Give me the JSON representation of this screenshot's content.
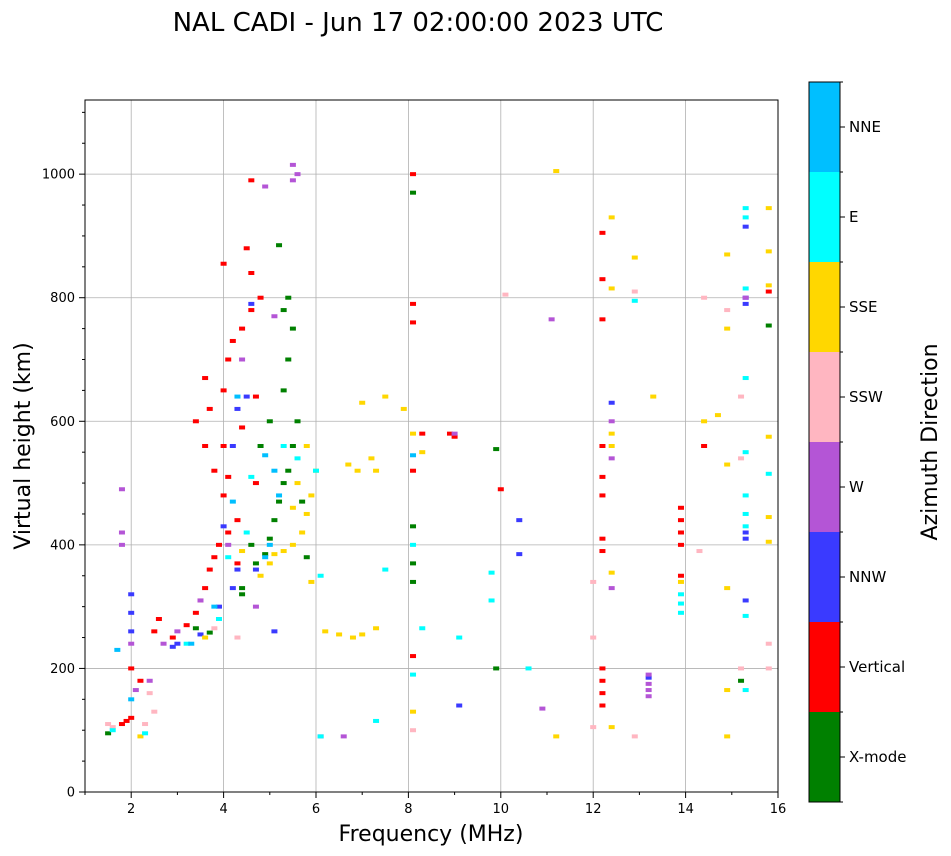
{
  "chart_data": {
    "type": "scatter",
    "title": "NAL CADI - Jun 17 02:00:00 2023 UTC",
    "xlabel": "Frequency (MHz)",
    "ylabel": "Virtual height (km)",
    "xlim": [
      1.0,
      16.0
    ],
    "ylim": [
      0,
      1120
    ],
    "xticks": [
      2,
      4,
      6,
      8,
      10,
      12,
      14,
      16
    ],
    "yticks": [
      0,
      200,
      400,
      600,
      800,
      1000
    ],
    "grid": true,
    "colorbar": {
      "label": "Azimuth Direction",
      "categories": [
        {
          "name": "X-mode",
          "color": "#008000"
        },
        {
          "name": "Vertical",
          "color": "#ff0000"
        },
        {
          "name": "NNW",
          "color": "#3a3aff"
        },
        {
          "name": "W",
          "color": "#b455d6"
        },
        {
          "name": "SSW",
          "color": "#ffb6c1"
        },
        {
          "name": "SSE",
          "color": "#ffd700"
        },
        {
          "name": "E",
          "color": "#00ffff"
        },
        {
          "name": "NNE",
          "color": "#00bfff"
        }
      ]
    },
    "series": [
      {
        "name": "X-mode",
        "color": "#008000",
        "points": [
          [
            1.5,
            95
          ],
          [
            3.4,
            265
          ],
          [
            3.7,
            258
          ],
          [
            4.4,
            320
          ],
          [
            4.7,
            370
          ],
          [
            4.9,
            385
          ],
          [
            5.0,
            410
          ],
          [
            5.1,
            440
          ],
          [
            5.2,
            470
          ],
          [
            5.3,
            500
          ],
          [
            5.4,
            520
          ],
          [
            5.5,
            560
          ],
          [
            5.6,
            600
          ],
          [
            5.3,
            650
          ],
          [
            5.4,
            700
          ],
          [
            5.5,
            750
          ],
          [
            5.3,
            780
          ],
          [
            5.4,
            800
          ],
          [
            5.2,
            885
          ],
          [
            4.4,
            330
          ],
          [
            4.6,
            400
          ],
          [
            5.7,
            470
          ],
          [
            5.8,
            380
          ],
          [
            4.8,
            560
          ],
          [
            5.0,
            600
          ],
          [
            8.1,
            970
          ],
          [
            8.1,
            430
          ],
          [
            8.1,
            370
          ],
          [
            8.1,
            340
          ],
          [
            9.9,
            555
          ],
          [
            9.9,
            200
          ],
          [
            15.8,
            755
          ],
          [
            15.2,
            180
          ]
        ]
      },
      {
        "name": "Vertical",
        "color": "#ff0000",
        "points": [
          [
            1.8,
            110
          ],
          [
            1.9,
            115
          ],
          [
            2.0,
            120
          ],
          [
            2.0,
            200
          ],
          [
            2.2,
            180
          ],
          [
            2.5,
            260
          ],
          [
            2.6,
            280
          ],
          [
            2.9,
            250
          ],
          [
            3.2,
            270
          ],
          [
            3.4,
            290
          ],
          [
            3.5,
            310
          ],
          [
            3.6,
            330
          ],
          [
            3.7,
            360
          ],
          [
            3.8,
            380
          ],
          [
            3.9,
            400
          ],
          [
            4.1,
            420
          ],
          [
            4.3,
            440
          ],
          [
            4.0,
            480
          ],
          [
            4.1,
            510
          ],
          [
            3.8,
            520
          ],
          [
            3.6,
            560
          ],
          [
            3.4,
            600
          ],
          [
            3.7,
            620
          ],
          [
            3.6,
            670
          ],
          [
            4.0,
            650
          ],
          [
            4.1,
            700
          ],
          [
            4.2,
            730
          ],
          [
            4.4,
            750
          ],
          [
            4.6,
            780
          ],
          [
            4.8,
            800
          ],
          [
            4.6,
            840
          ],
          [
            4.0,
            855
          ],
          [
            4.5,
            880
          ],
          [
            4.6,
            990
          ],
          [
            4.4,
            590
          ],
          [
            4.7,
            640
          ],
          [
            4.0,
            560
          ],
          [
            4.3,
            370
          ],
          [
            4.7,
            500
          ],
          [
            8.1,
            520
          ],
          [
            8.1,
            220
          ],
          [
            8.1,
            760
          ],
          [
            8.1,
            790
          ],
          [
            8.1,
            1000
          ],
          [
            8.3,
            580
          ],
          [
            8.9,
            580
          ],
          [
            9.0,
            575
          ],
          [
            10.0,
            490
          ],
          [
            12.2,
            905
          ],
          [
            12.2,
            830
          ],
          [
            12.2,
            765
          ],
          [
            12.2,
            560
          ],
          [
            12.2,
            510
          ],
          [
            12.2,
            480
          ],
          [
            12.2,
            410
          ],
          [
            12.2,
            390
          ],
          [
            12.2,
            200
          ],
          [
            12.2,
            180
          ],
          [
            12.2,
            160
          ],
          [
            12.2,
            140
          ],
          [
            13.9,
            460
          ],
          [
            13.9,
            440
          ],
          [
            13.9,
            420
          ],
          [
            13.9,
            400
          ],
          [
            13.9,
            350
          ],
          [
            14.4,
            560
          ],
          [
            15.8,
            810
          ]
        ]
      },
      {
        "name": "NNW",
        "color": "#3a3aff",
        "points": [
          [
            2.0,
            320
          ],
          [
            2.0,
            290
          ],
          [
            2.0,
            260
          ],
          [
            2.9,
            235
          ],
          [
            3.0,
            240
          ],
          [
            3.5,
            255
          ],
          [
            3.9,
            300
          ],
          [
            4.2,
            330
          ],
          [
            4.3,
            360
          ],
          [
            4.0,
            430
          ],
          [
            4.2,
            560
          ],
          [
            4.3,
            620
          ],
          [
            4.5,
            640
          ],
          [
            4.6,
            790
          ],
          [
            4.7,
            360
          ],
          [
            5.1,
            260
          ],
          [
            9.1,
            140
          ],
          [
            10.4,
            440
          ],
          [
            10.4,
            385
          ],
          [
            12.4,
            630
          ],
          [
            13.2,
            185
          ],
          [
            15.3,
            420
          ],
          [
            15.3,
            410
          ],
          [
            15.3,
            310
          ],
          [
            15.3,
            800
          ],
          [
            15.3,
            790
          ],
          [
            15.3,
            915
          ]
        ]
      },
      {
        "name": "W",
        "color": "#b455d6",
        "points": [
          [
            1.8,
            420
          ],
          [
            1.8,
            400
          ],
          [
            1.8,
            490
          ],
          [
            2.0,
            240
          ],
          [
            2.1,
            165
          ],
          [
            2.4,
            180
          ],
          [
            2.7,
            240
          ],
          [
            3.0,
            260
          ],
          [
            3.5,
            310
          ],
          [
            4.1,
            400
          ],
          [
            4.4,
            700
          ],
          [
            4.7,
            300
          ],
          [
            4.9,
            980
          ],
          [
            5.1,
            770
          ],
          [
            5.5,
            1015
          ],
          [
            5.6,
            1000
          ],
          [
            5.5,
            990
          ],
          [
            6.1,
            90
          ],
          [
            6.6,
            90
          ],
          [
            9.0,
            580
          ],
          [
            10.9,
            135
          ],
          [
            11.1,
            765
          ],
          [
            12.4,
            540
          ],
          [
            12.4,
            330
          ],
          [
            12.4,
            600
          ],
          [
            13.2,
            190
          ],
          [
            13.2,
            175
          ],
          [
            13.2,
            165
          ],
          [
            13.2,
            155
          ],
          [
            15.3,
            800
          ]
        ]
      },
      {
        "name": "SSW",
        "color": "#ffb6c1",
        "points": [
          [
            1.5,
            110
          ],
          [
            1.6,
            105
          ],
          [
            2.3,
            110
          ],
          [
            2.5,
            130
          ],
          [
            2.4,
            160
          ],
          [
            3.8,
            265
          ],
          [
            4.3,
            250
          ],
          [
            8.1,
            100
          ],
          [
            10.1,
            805
          ],
          [
            12.0,
            340
          ],
          [
            12.0,
            250
          ],
          [
            12.0,
            105
          ],
          [
            12.9,
            810
          ],
          [
            12.9,
            90
          ],
          [
            14.4,
            800
          ],
          [
            14.9,
            780
          ],
          [
            15.2,
            640
          ],
          [
            15.2,
            540
          ],
          [
            15.2,
            200
          ],
          [
            15.8,
            240
          ],
          [
            15.8,
            200
          ],
          [
            14.3,
            390
          ]
        ]
      },
      {
        "name": "SSE",
        "color": "#ffd700",
        "points": [
          [
            2.2,
            90
          ],
          [
            3.6,
            250
          ],
          [
            4.4,
            390
          ],
          [
            4.8,
            350
          ],
          [
            5.0,
            370
          ],
          [
            5.1,
            385
          ],
          [
            5.3,
            390
          ],
          [
            5.5,
            400
          ],
          [
            5.7,
            420
          ],
          [
            5.8,
            450
          ],
          [
            5.9,
            480
          ],
          [
            6.0,
            520
          ],
          [
            5.8,
            560
          ],
          [
            5.5,
            460
          ],
          [
            5.6,
            500
          ],
          [
            5.9,
            340
          ],
          [
            6.2,
            260
          ],
          [
            6.5,
            255
          ],
          [
            6.8,
            250
          ],
          [
            7.0,
            255
          ],
          [
            7.3,
            265
          ],
          [
            6.7,
            530
          ],
          [
            6.9,
            520
          ],
          [
            7.2,
            540
          ],
          [
            7.3,
            520
          ],
          [
            7.0,
            630
          ],
          [
            7.5,
            640
          ],
          [
            7.9,
            620
          ],
          [
            8.1,
            580
          ],
          [
            8.1,
            130
          ],
          [
            8.3,
            550
          ],
          [
            11.2,
            1005
          ],
          [
            11.2,
            90
          ],
          [
            12.4,
            930
          ],
          [
            12.4,
            815
          ],
          [
            12.4,
            580
          ],
          [
            12.4,
            560
          ],
          [
            12.4,
            355
          ],
          [
            12.4,
            105
          ],
          [
            12.9,
            865
          ],
          [
            13.3,
            640
          ],
          [
            13.9,
            340
          ],
          [
            14.7,
            610
          ],
          [
            14.4,
            600
          ],
          [
            14.9,
            870
          ],
          [
            14.9,
            750
          ],
          [
            14.9,
            530
          ],
          [
            14.9,
            330
          ],
          [
            14.9,
            165
          ],
          [
            14.9,
            90
          ],
          [
            15.8,
            945
          ],
          [
            15.8,
            875
          ],
          [
            15.8,
            820
          ],
          [
            15.8,
            575
          ],
          [
            15.8,
            445
          ],
          [
            15.8,
            405
          ]
        ]
      },
      {
        "name": "E",
        "color": "#00ffff",
        "points": [
          [
            1.6,
            100
          ],
          [
            2.3,
            95
          ],
          [
            3.2,
            240
          ],
          [
            3.9,
            280
          ],
          [
            4.1,
            380
          ],
          [
            4.5,
            420
          ],
          [
            4.6,
            510
          ],
          [
            5.3,
            560
          ],
          [
            5.6,
            540
          ],
          [
            6.0,
            520
          ],
          [
            6.1,
            350
          ],
          [
            6.1,
            90
          ],
          [
            7.3,
            115
          ],
          [
            7.5,
            360
          ],
          [
            8.1,
            190
          ],
          [
            8.1,
            400
          ],
          [
            8.3,
            265
          ],
          [
            9.1,
            250
          ],
          [
            9.8,
            355
          ],
          [
            9.8,
            310
          ],
          [
            10.6,
            200
          ],
          [
            12.9,
            795
          ],
          [
            13.9,
            320
          ],
          [
            13.9,
            305
          ],
          [
            13.9,
            290
          ],
          [
            15.3,
            945
          ],
          [
            15.3,
            930
          ],
          [
            15.3,
            815
          ],
          [
            15.3,
            670
          ],
          [
            15.3,
            550
          ],
          [
            15.3,
            480
          ],
          [
            15.3,
            450
          ],
          [
            15.3,
            430
          ],
          [
            15.3,
            285
          ],
          [
            15.3,
            165
          ],
          [
            15.8,
            515
          ]
        ]
      },
      {
        "name": "NNE",
        "color": "#00bfff",
        "points": [
          [
            1.7,
            230
          ],
          [
            2.0,
            150
          ],
          [
            3.3,
            240
          ],
          [
            3.8,
            300
          ],
          [
            4.2,
            470
          ],
          [
            4.3,
            640
          ],
          [
            4.9,
            380
          ],
          [
            5.0,
            400
          ],
          [
            5.2,
            480
          ],
          [
            5.1,
            520
          ],
          [
            4.9,
            545
          ],
          [
            8.1,
            545
          ]
        ]
      }
    ]
  }
}
